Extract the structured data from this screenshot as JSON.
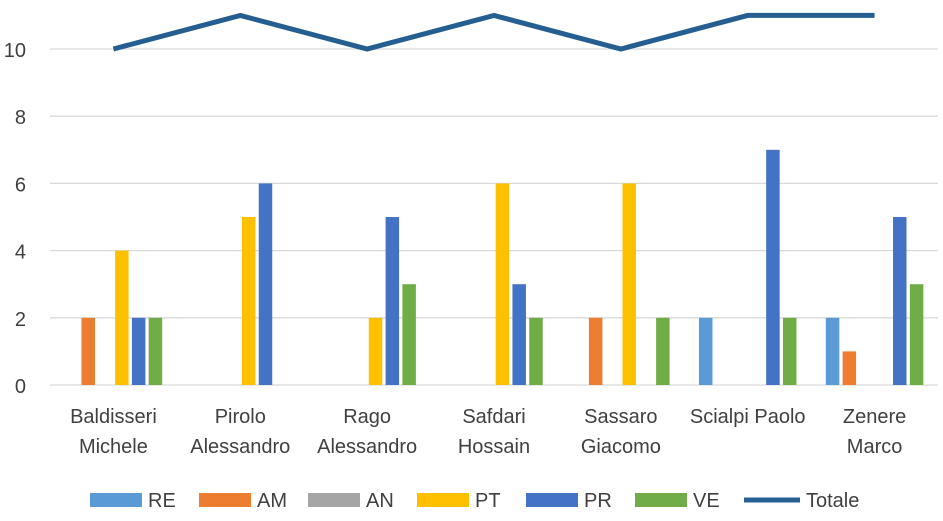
{
  "chart_data": {
    "type": "bar",
    "title": "",
    "xlabel": "",
    "ylabel": "",
    "ylim": [
      0,
      11
    ],
    "yticks": [
      0,
      2,
      4,
      6,
      8,
      10
    ],
    "grid": true,
    "legend_position": "bottom",
    "categories": [
      [
        "Baldisseri",
        "Michele"
      ],
      [
        "Pirolo",
        "Alessandro"
      ],
      [
        "Rago",
        "Alessandro"
      ],
      [
        "Safdari",
        "Hossain"
      ],
      [
        "Sassaro",
        "Giacomo"
      ],
      [
        "Scialpi Paolo"
      ],
      [
        "Zenere",
        "Marco"
      ]
    ],
    "series": [
      {
        "name": "RE",
        "kind": "bar",
        "color": "#5B9BD5",
        "values": [
          0,
          0,
          0,
          0,
          0,
          2,
          2
        ]
      },
      {
        "name": "AM",
        "kind": "bar",
        "color": "#ED7D31",
        "values": [
          2,
          0,
          0,
          0,
          2,
          0,
          1
        ]
      },
      {
        "name": "AN",
        "kind": "bar",
        "color": "#A5A5A5",
        "values": [
          0,
          0,
          0,
          0,
          0,
          0,
          0
        ]
      },
      {
        "name": "PT",
        "kind": "bar",
        "color": "#FFC000",
        "values": [
          4,
          5,
          2,
          6,
          6,
          0,
          0
        ]
      },
      {
        "name": "PR",
        "kind": "bar",
        "color": "#4472C4",
        "values": [
          2,
          6,
          5,
          3,
          0,
          7,
          5
        ]
      },
      {
        "name": "VE",
        "kind": "bar",
        "color": "#70AD47",
        "values": [
          2,
          0,
          3,
          2,
          2,
          2,
          3
        ]
      },
      {
        "name": "Totale",
        "kind": "line",
        "color": "#255E91",
        "values": [
          10,
          11,
          10,
          11,
          10,
          11,
          11
        ]
      }
    ]
  }
}
